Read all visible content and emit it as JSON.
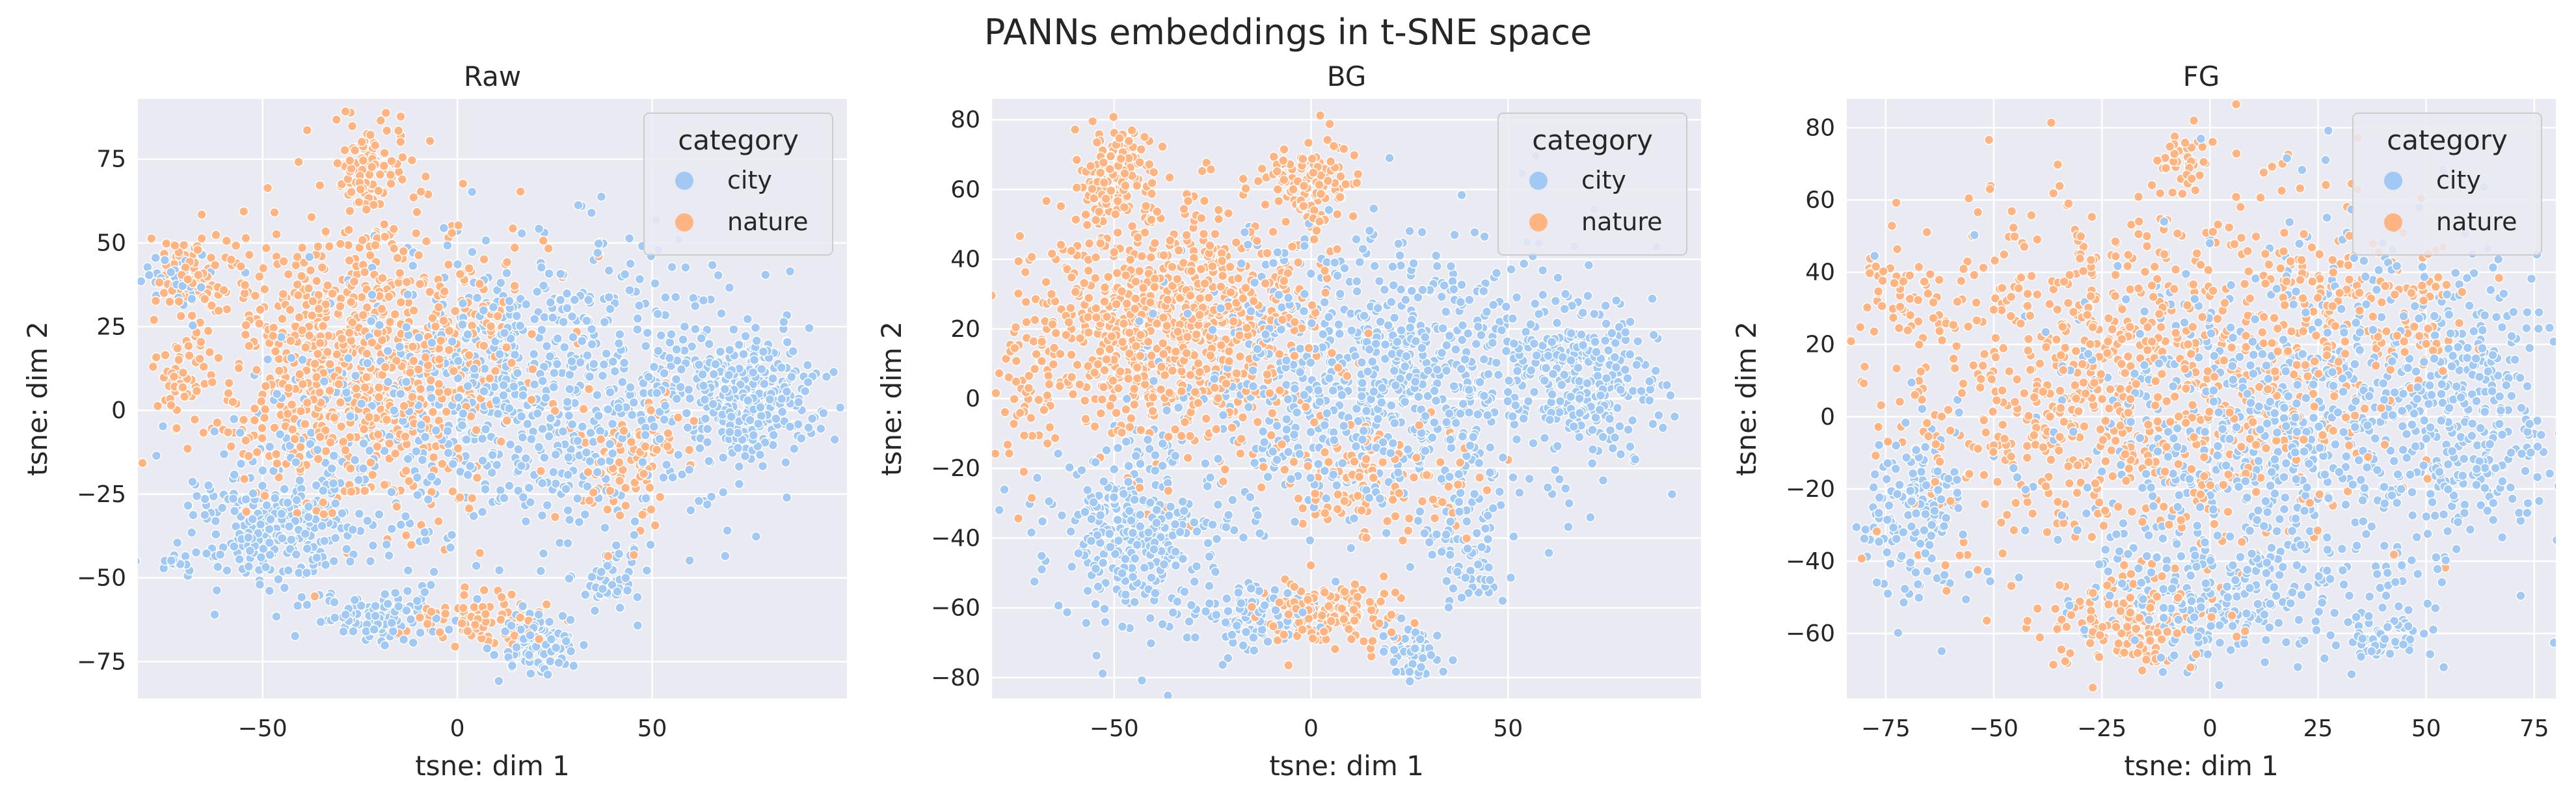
{
  "figure": {
    "title": "PANNs embeddings in t-SNE space",
    "colors": {
      "background": "#eaeaf2",
      "grid": "#ffffff",
      "city": "#a1c9f4",
      "nature": "#ffb482"
    }
  },
  "chart_data": [
    {
      "type": "scatter",
      "title": "Raw",
      "xlabel": "tsne: dim 1",
      "ylabel": "tsne: dim 2",
      "xlim": [
        -82,
        100
      ],
      "ylim": [
        -86,
        93
      ],
      "xticks": [
        -50,
        0,
        50
      ],
      "yticks": [
        -75,
        -50,
        -25,
        0,
        25,
        50,
        75
      ],
      "grid": true,
      "legend": {
        "title": "category",
        "entries": [
          "city",
          "nature"
        ],
        "placement": "top-right"
      },
      "series": [
        {
          "name": "city",
          "color": "#a1c9f4",
          "clusters": [
            {
              "cx": 20,
              "cy": 5,
              "sx": 30,
              "sy": 22,
              "n": 900
            },
            {
              "cx": 75,
              "cy": 5,
              "sx": 9,
              "sy": 9,
              "n": 280
            },
            {
              "cx": -45,
              "cy": -32,
              "sx": 12,
              "sy": 11,
              "n": 280
            },
            {
              "cx": -20,
              "cy": -62,
              "sx": 8,
              "sy": 4,
              "n": 110
            },
            {
              "cx": 20,
              "cy": -70,
              "sx": 5,
              "sy": 4,
              "n": 90
            },
            {
              "cx": 40,
              "cy": -50,
              "sx": 4,
              "sy": 5,
              "n": 40
            },
            {
              "cx": -72,
              "cy": 40,
              "sx": 4,
              "sy": 4,
              "n": 35
            },
            {
              "cx": -72,
              "cy": -44,
              "sx": 2,
              "sy": 2,
              "n": 15
            }
          ]
        },
        {
          "name": "nature",
          "color": "#ffb482",
          "clusters": [
            {
              "cx": -25,
              "cy": 15,
              "sx": 20,
              "sy": 22,
              "n": 900
            },
            {
              "cx": -22,
              "cy": 72,
              "sx": 4,
              "sy": 7,
              "n": 90
            },
            {
              "cx": -68,
              "cy": 40,
              "sx": 5,
              "sy": 6,
              "n": 80
            },
            {
              "cx": -72,
              "cy": 12,
              "sx": 3,
              "sy": 5,
              "n": 40
            },
            {
              "cx": 5,
              "cy": -62,
              "sx": 8,
              "sy": 4,
              "n": 80
            },
            {
              "cx": 45,
              "cy": -15,
              "sx": 8,
              "sy": 10,
              "n": 90
            }
          ]
        }
      ]
    },
    {
      "type": "scatter",
      "title": "BG",
      "xlabel": "tsne: dim 1",
      "ylabel": "tsne: dim 2",
      "xlim": [
        -81,
        99
      ],
      "ylim": [
        -86,
        86
      ],
      "xticks": [
        -50,
        0,
        50
      ],
      "yticks": [
        -80,
        -60,
        -40,
        -20,
        0,
        20,
        40,
        60,
        80
      ],
      "grid": true,
      "legend": {
        "title": "category",
        "entries": [
          "city",
          "nature"
        ],
        "placement": "top-right"
      },
      "series": [
        {
          "name": "city",
          "color": "#a1c9f4",
          "clusters": [
            {
              "cx": 20,
              "cy": 5,
              "sx": 28,
              "sy": 20,
              "n": 900
            },
            {
              "cx": 70,
              "cy": 5,
              "sx": 9,
              "sy": 10,
              "n": 220
            },
            {
              "cx": -45,
              "cy": -38,
              "sx": 11,
              "sy": 14,
              "n": 320
            },
            {
              "cx": -15,
              "cy": -62,
              "sx": 8,
              "sy": 5,
              "n": 90
            },
            {
              "cx": 25,
              "cy": -72,
              "sx": 4,
              "sy": 4,
              "n": 60
            },
            {
              "cx": 40,
              "cy": -45,
              "sx": 6,
              "sy": 8,
              "n": 70
            }
          ]
        },
        {
          "name": "nature",
          "color": "#ffb482",
          "clusters": [
            {
              "cx": -35,
              "cy": 20,
              "sx": 18,
              "sy": 18,
              "n": 850
            },
            {
              "cx": -50,
              "cy": 62,
              "sx": 5,
              "sy": 8,
              "n": 130
            },
            {
              "cx": 0,
              "cy": 62,
              "sx": 6,
              "sy": 6,
              "n": 110
            },
            {
              "cx": 5,
              "cy": -62,
              "sx": 9,
              "sy": 5,
              "n": 140
            },
            {
              "cx": 15,
              "cy": -25,
              "sx": 12,
              "sy": 8,
              "n": 120
            },
            {
              "cx": -70,
              "cy": 5,
              "sx": 4,
              "sy": 14,
              "n": 60
            }
          ]
        }
      ]
    },
    {
      "type": "scatter",
      "title": "FG",
      "xlabel": "tsne: dim 1",
      "ylabel": "tsne: dim 2",
      "xlim": [
        -84,
        80
      ],
      "ylim": [
        -78,
        88
      ],
      "xticks": [
        -75,
        -50,
        -25,
        0,
        25,
        50,
        75
      ],
      "yticks": [
        -60,
        -40,
        -20,
        0,
        20,
        40,
        60,
        80
      ],
      "grid": true,
      "legend": {
        "title": "category",
        "entries": [
          "city",
          "nature"
        ],
        "placement": "top-right"
      },
      "series": [
        {
          "name": "city",
          "color": "#a1c9f4",
          "clusters": [
            {
              "cx": 20,
              "cy": -5,
              "sx": 30,
              "sy": 28,
              "n": 900
            },
            {
              "cx": 0,
              "cy": -50,
              "sx": 15,
              "sy": 8,
              "n": 200
            },
            {
              "cx": -68,
              "cy": -25,
              "sx": 6,
              "sy": 12,
              "n": 160
            },
            {
              "cx": 60,
              "cy": 0,
              "sx": 10,
              "sy": 18,
              "n": 200
            },
            {
              "cx": 40,
              "cy": -60,
              "sx": 4,
              "sy": 4,
              "n": 50
            }
          ]
        },
        {
          "name": "nature",
          "color": "#ffb482",
          "clusters": [
            {
              "cx": -20,
              "cy": 10,
              "sx": 28,
              "sy": 26,
              "n": 900
            },
            {
              "cx": -20,
              "cy": -58,
              "sx": 10,
              "sy": 6,
              "n": 140
            },
            {
              "cx": -5,
              "cy": 72,
              "sx": 4,
              "sy": 4,
              "n": 40
            },
            {
              "cx": -70,
              "cy": 35,
              "sx": 5,
              "sy": 5,
              "n": 40
            },
            {
              "cx": 35,
              "cy": 30,
              "sx": 14,
              "sy": 12,
              "n": 160
            }
          ]
        }
      ]
    }
  ]
}
